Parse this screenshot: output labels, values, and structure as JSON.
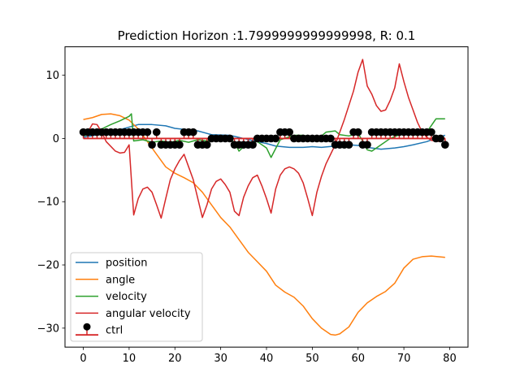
{
  "chart_data": {
    "type": "line",
    "title": "Prediction Horizon :1.7999999999999998, R: 0.1",
    "xlabel": "",
    "ylabel": "",
    "xlim": [
      -4,
      84
    ],
    "ylim": [
      -33,
      14.5
    ],
    "xticks": [
      0,
      10,
      20,
      30,
      40,
      50,
      60,
      70,
      80
    ],
    "xtick_labels": [
      "0",
      "10",
      "20",
      "30",
      "40",
      "50",
      "60",
      "70",
      "80"
    ],
    "yticks": [
      10,
      0,
      -10,
      -20,
      -30
    ],
    "ytick_labels": [
      "10",
      "0",
      "−10",
      "−20",
      "−30"
    ],
    "grid": false,
    "legend_position": "lower-left",
    "series": [
      {
        "name": "position",
        "color": "#1f77b4",
        "kind": "line",
        "points": [
          [
            0,
            0.2
          ],
          [
            5,
            0.8
          ],
          [
            10,
            1.8
          ],
          [
            12,
            2.2
          ],
          [
            15,
            2.2
          ],
          [
            18,
            2.0
          ],
          [
            20,
            1.6
          ],
          [
            25,
            1.2
          ],
          [
            28,
            0.6
          ],
          [
            32,
            0.5
          ],
          [
            35,
            0
          ],
          [
            38,
            -0.5
          ],
          [
            40,
            -0.8
          ],
          [
            42,
            -1.2
          ],
          [
            45,
            -1.4
          ],
          [
            48,
            -1.4
          ],
          [
            50,
            -1.3
          ],
          [
            52,
            -1.4
          ],
          [
            55,
            -1.2
          ],
          [
            58,
            -1.0
          ],
          [
            60,
            -1.1
          ],
          [
            62,
            -1.4
          ],
          [
            65,
            -1.7
          ],
          [
            68,
            -1.5
          ],
          [
            70,
            -1.3
          ],
          [
            72,
            -1.0
          ],
          [
            75,
            -0.5
          ],
          [
            78,
            0.3
          ],
          [
            79,
            0.5
          ]
        ]
      },
      {
        "name": "angle",
        "color": "#ff7f0e",
        "kind": "line",
        "points": [
          [
            0,
            3.0
          ],
          [
            2,
            3.3
          ],
          [
            4,
            3.8
          ],
          [
            6,
            3.9
          ],
          [
            8,
            3.6
          ],
          [
            10,
            2.9
          ],
          [
            12,
            1.5
          ],
          [
            14,
            -0.5
          ],
          [
            16,
            -2.5
          ],
          [
            18,
            -4.5
          ],
          [
            20,
            -5.5
          ],
          [
            22,
            -6.2
          ],
          [
            24,
            -7.0
          ],
          [
            26,
            -8.5
          ],
          [
            28,
            -10.5
          ],
          [
            30,
            -12.5
          ],
          [
            32,
            -14
          ],
          [
            34,
            -16
          ],
          [
            36,
            -18
          ],
          [
            38,
            -19.5
          ],
          [
            40,
            -21
          ],
          [
            42,
            -23.2
          ],
          [
            44,
            -24.3
          ],
          [
            46,
            -25.1
          ],
          [
            48,
            -26.5
          ],
          [
            50,
            -28.5
          ],
          [
            52,
            -30
          ],
          [
            54,
            -31
          ],
          [
            55,
            -31.1
          ],
          [
            56,
            -30.9
          ],
          [
            58,
            -29.8
          ],
          [
            60,
            -27.5
          ],
          [
            62,
            -26
          ],
          [
            64,
            -25
          ],
          [
            66,
            -24.2
          ],
          [
            68,
            -22.9
          ],
          [
            70,
            -20.5
          ],
          [
            72,
            -19.1
          ],
          [
            74,
            -18.7
          ],
          [
            76,
            -18.6
          ],
          [
            79,
            -18.8
          ]
        ]
      },
      {
        "name": "velocity",
        "color": "#2ca02c",
        "kind": "line",
        "points": [
          [
            0,
            0.4
          ],
          [
            2,
            0.8
          ],
          [
            4,
            1.5
          ],
          [
            6,
            2.2
          ],
          [
            8,
            2.8
          ],
          [
            10,
            3.5
          ],
          [
            10.5,
            3.9
          ],
          [
            11,
            -0.4
          ],
          [
            13,
            -0.2
          ],
          [
            15,
            -0.6
          ],
          [
            17,
            -0.4
          ],
          [
            19,
            -0.6
          ],
          [
            21,
            -0.3
          ],
          [
            23,
            -0.6
          ],
          [
            25,
            -0.2
          ],
          [
            27,
            -0.4
          ],
          [
            29,
            -0.1
          ],
          [
            31,
            0.2
          ],
          [
            33,
            -0.6
          ],
          [
            34,
            -2.0
          ],
          [
            36,
            -0.6
          ],
          [
            38,
            -0.5
          ],
          [
            40,
            -1.5
          ],
          [
            41,
            -3.0
          ],
          [
            43,
            -0.2
          ],
          [
            46,
            0.5
          ],
          [
            48,
            0.5
          ],
          [
            50,
            0.2
          ],
          [
            52,
            0.4
          ],
          [
            53,
            1.0
          ],
          [
            55,
            1.2
          ],
          [
            56,
            0.6
          ],
          [
            58,
            0.4
          ],
          [
            60,
            0.8
          ],
          [
            61,
            -0.4
          ],
          [
            62,
            -1.8
          ],
          [
            63,
            -2.0
          ],
          [
            65,
            -1.0
          ],
          [
            67,
            0
          ],
          [
            69,
            0.6
          ],
          [
            71,
            0.8
          ],
          [
            73,
            0.5
          ],
          [
            75,
            1.0
          ],
          [
            77,
            3.1
          ],
          [
            79,
            3.1
          ]
        ]
      },
      {
        "name": "angular velocity",
        "color": "#d62728",
        "kind": "line",
        "points": [
          [
            0,
            0.5
          ],
          [
            1,
            1.0
          ],
          [
            2,
            2.3
          ],
          [
            3,
            2.2
          ],
          [
            4,
            1.0
          ],
          [
            5,
            -0.5
          ],
          [
            7,
            -2.0
          ],
          [
            8,
            -2.3
          ],
          [
            9,
            -2.2
          ],
          [
            10,
            -1.0
          ],
          [
            11,
            -12.1
          ],
          [
            12,
            -9.5
          ],
          [
            13,
            -8.0
          ],
          [
            14,
            -7.7
          ],
          [
            15,
            -8.5
          ],
          [
            16,
            -10.5
          ],
          [
            17,
            -12.6
          ],
          [
            18,
            -9.5
          ],
          [
            19,
            -6.5
          ],
          [
            20,
            -4.8
          ],
          [
            21,
            -3.5
          ],
          [
            22,
            -2.5
          ],
          [
            23,
            -4.5
          ],
          [
            24,
            -6.5
          ],
          [
            25,
            -9.5
          ],
          [
            26,
            -12.5
          ],
          [
            27,
            -10.5
          ],
          [
            28,
            -8.0
          ],
          [
            29,
            -6.8
          ],
          [
            30,
            -6.4
          ],
          [
            31,
            -7.3
          ],
          [
            32,
            -8.5
          ],
          [
            33,
            -11.5
          ],
          [
            34,
            -12.2
          ],
          [
            35,
            -9.3
          ],
          [
            36,
            -7.5
          ],
          [
            37,
            -6.2
          ],
          [
            38,
            -5.8
          ],
          [
            39,
            -7.5
          ],
          [
            40,
            -9.5
          ],
          [
            41,
            -11.8
          ],
          [
            42,
            -8.0
          ],
          [
            43,
            -5.8
          ],
          [
            44,
            -4.8
          ],
          [
            45,
            -4.5
          ],
          [
            46,
            -4.8
          ],
          [
            47,
            -5.5
          ],
          [
            48,
            -7.0
          ],
          [
            49,
            -9.5
          ],
          [
            50,
            -12.2
          ],
          [
            51,
            -8.5
          ],
          [
            52,
            -6.0
          ],
          [
            53,
            -4.0
          ],
          [
            54,
            -2.5
          ],
          [
            55,
            -1.0
          ],
          [
            57,
            3.0
          ],
          [
            59,
            7.5
          ],
          [
            60,
            10.5
          ],
          [
            61,
            12.5
          ],
          [
            62,
            8.3
          ],
          [
            63,
            7.0
          ],
          [
            64,
            5.2
          ],
          [
            65,
            4.3
          ],
          [
            66,
            4.5
          ],
          [
            67,
            6.0
          ],
          [
            68,
            8.0
          ],
          [
            69,
            11.8
          ],
          [
            70,
            9.0
          ],
          [
            71,
            6.5
          ],
          [
            72,
            4.5
          ],
          [
            73,
            2.5
          ],
          [
            74,
            1.0
          ],
          [
            75,
            0.2
          ],
          [
            76,
            -0.3
          ],
          [
            78,
            -0.5
          ],
          [
            79,
            0.1
          ]
        ]
      },
      {
        "name": "ctrl",
        "color": "#000000",
        "stem_color": "#d62728",
        "kind": "stem",
        "x": [
          0,
          1,
          2,
          3,
          4,
          5,
          6,
          7,
          8,
          9,
          10,
          11,
          12,
          13,
          14,
          15,
          16,
          17,
          18,
          19,
          20,
          21,
          22,
          23,
          24,
          25,
          26,
          27,
          28,
          29,
          30,
          31,
          32,
          33,
          34,
          35,
          36,
          37,
          38,
          39,
          40,
          41,
          42,
          43,
          44,
          45,
          46,
          47,
          48,
          49,
          50,
          51,
          52,
          53,
          54,
          55,
          56,
          57,
          58,
          59,
          60,
          61,
          62,
          63,
          64,
          65,
          66,
          67,
          68,
          69,
          70,
          71,
          72,
          73,
          74,
          75,
          76,
          77,
          78,
          79
        ],
        "y": [
          1,
          1,
          1,
          1,
          1,
          1,
          1,
          1,
          1,
          1,
          1,
          1,
          1,
          1,
          1,
          -1,
          1,
          -1,
          -1,
          -1,
          -1,
          -1,
          1,
          1,
          1,
          -1,
          -1,
          -1,
          0,
          0,
          0,
          0,
          0,
          -1,
          -1,
          -1,
          -1,
          -1,
          0,
          0,
          0,
          0,
          0,
          1,
          1,
          1,
          0,
          0,
          0,
          0,
          0,
          0,
          0,
          0,
          0,
          -1,
          -1,
          -1,
          -1,
          1,
          1,
          -1,
          -1,
          1,
          1,
          1,
          1,
          1,
          1,
          1,
          1,
          1,
          1,
          1,
          1,
          1,
          1,
          0,
          0,
          -1
        ]
      }
    ]
  }
}
